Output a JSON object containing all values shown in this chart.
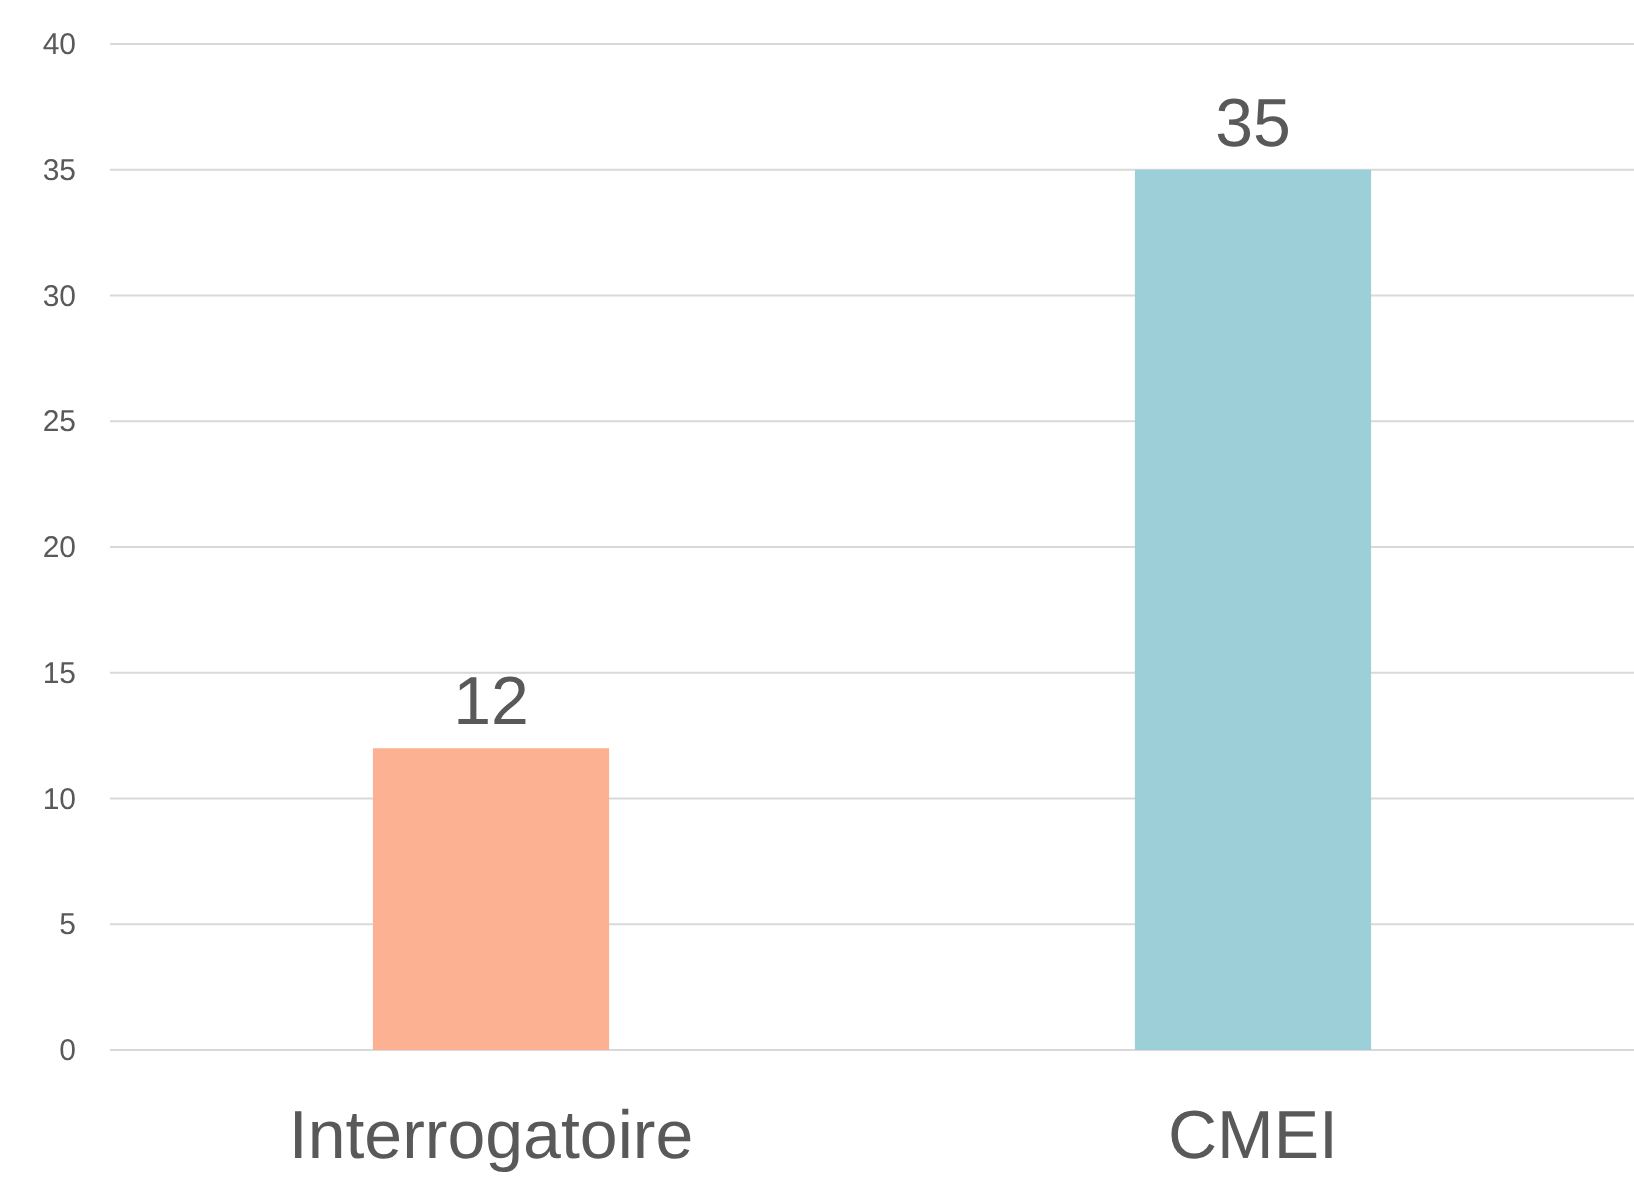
{
  "chart_data": {
    "type": "bar",
    "categories": [
      "Interrogatoire",
      "CMEI"
    ],
    "values": [
      12,
      35
    ],
    "colors": [
      "#fdb193",
      "#9dcfd9"
    ],
    "ylim": [
      0,
      40
    ],
    "yticks": [
      0,
      5,
      10,
      15,
      20,
      25,
      30,
      35,
      40
    ],
    "grid": "y",
    "data_labels": true
  }
}
